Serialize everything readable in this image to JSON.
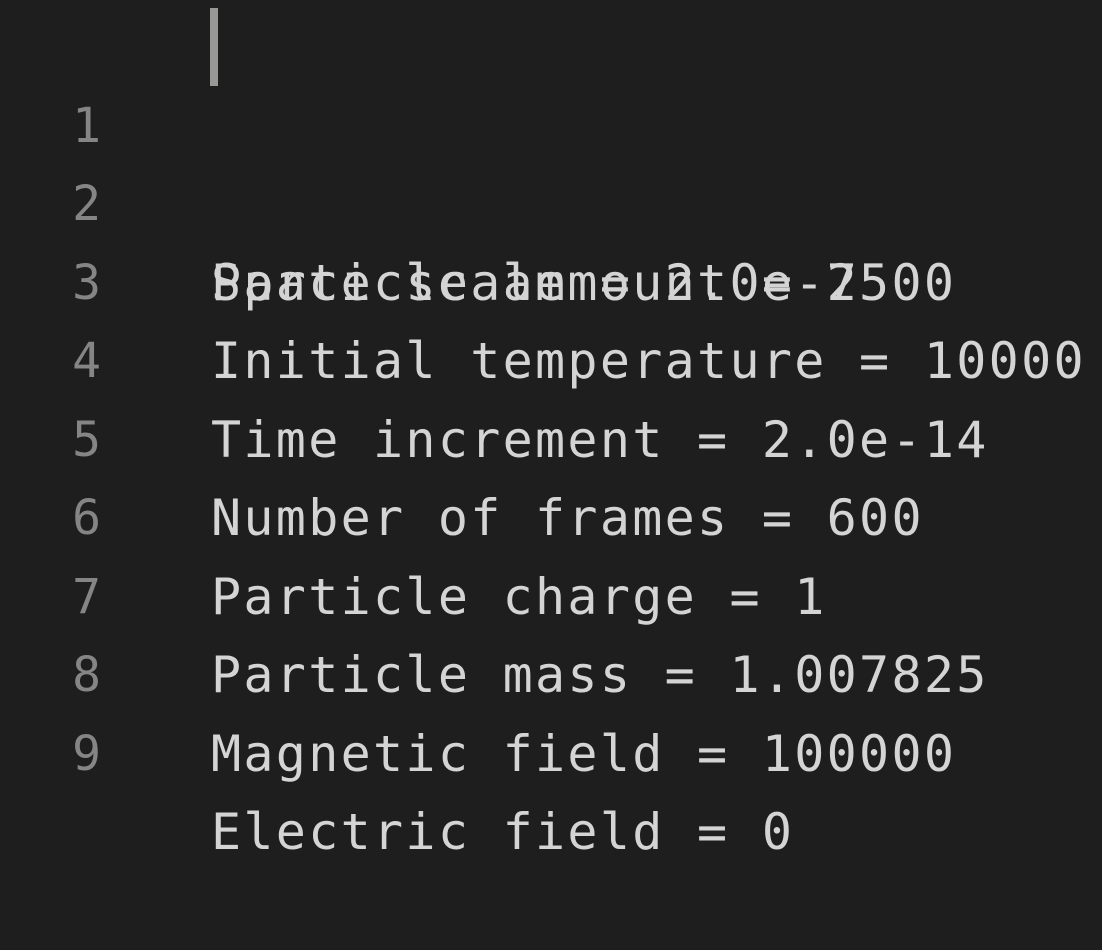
{
  "editor": {
    "lines": [
      {
        "number": "1",
        "text": "Particle ammount = 2500"
      },
      {
        "number": "2",
        "text": "Space scale = 2.0e-7"
      },
      {
        "number": "3",
        "text": "Initial temperature = 10000"
      },
      {
        "number": "4",
        "text": "Time increment = 2.0e-14"
      },
      {
        "number": "5",
        "text": "Number of frames = 600"
      },
      {
        "number": "6",
        "text": "Particle charge = 1"
      },
      {
        "number": "7",
        "text": "Particle mass = 1.007825"
      },
      {
        "number": "8",
        "text": "Magnetic field = 100000"
      },
      {
        "number": "9",
        "text": "Electric field = 0"
      }
    ],
    "colors": {
      "background": "#1e1e1e",
      "text": "#d4d4d4",
      "line_number": "#858585",
      "cursor": "#aeafad"
    }
  }
}
